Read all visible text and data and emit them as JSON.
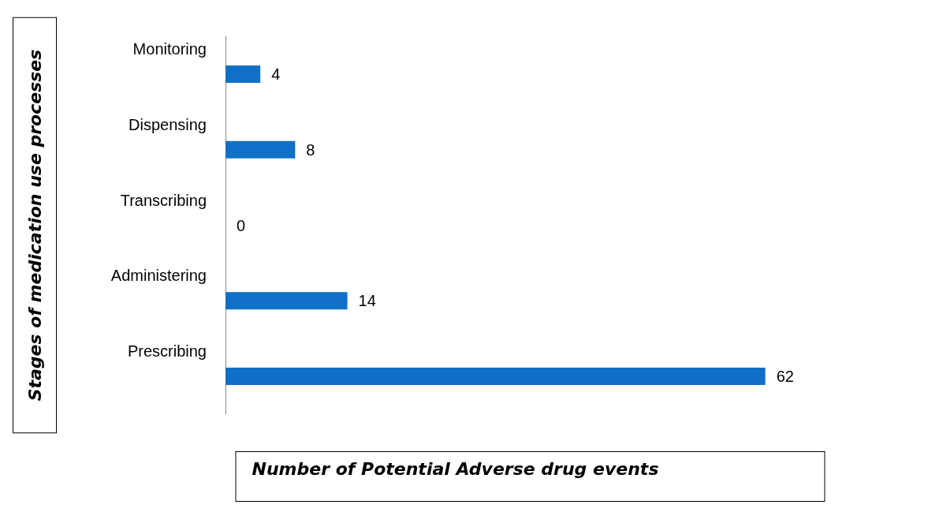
{
  "chart_data": {
    "type": "bar",
    "orientation": "horizontal",
    "xlabel": "Number of Potential Adverse drug events",
    "ylabel": "Stages of medication use processes",
    "categories": [
      "Monitoring",
      "Dispensing",
      "Transcribing",
      "Administering",
      "Prescribing"
    ],
    "values": [
      4,
      8,
      0,
      14,
      62
    ],
    "color": "#1070c8",
    "data_labels": true,
    "grid": false
  }
}
